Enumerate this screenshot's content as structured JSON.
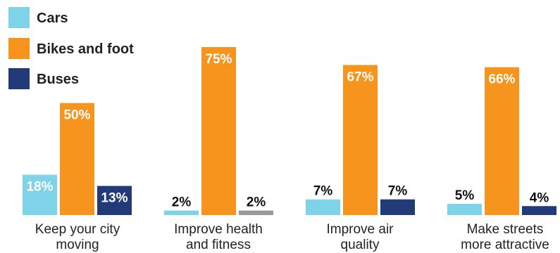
{
  "chart_data": {
    "type": "bar",
    "categories": [
      [
        "Keep your city",
        "moving"
      ],
      [
        "Improve health",
        "and fitness"
      ],
      [
        "Improve air",
        "quality"
      ],
      [
        "Make streets",
        "more attractive"
      ]
    ],
    "series": [
      {
        "name": "Cars",
        "color": "#7fd3e8",
        "values": [
          18,
          2,
          7,
          5
        ]
      },
      {
        "name": "Bikes and foot",
        "color": "#f7941d",
        "values": [
          50,
          75,
          67,
          66
        ]
      },
      {
        "name": "Buses",
        "color": "#233a78",
        "values": [
          13,
          2,
          7,
          4
        ]
      }
    ],
    "value_labels": [
      [
        "18%",
        "2%",
        "7%",
        "5%"
      ],
      [
        "50%",
        "75%",
        "67%",
        "66%"
      ],
      [
        "13%",
        "2%",
        "7%",
        "4%"
      ]
    ],
    "bar_color_overrides": [
      {
        "series": 2,
        "category": 1,
        "color": "#999999"
      }
    ],
    "ylim": [
      0,
      75
    ],
    "grid": false,
    "legend_position": "top-left"
  }
}
